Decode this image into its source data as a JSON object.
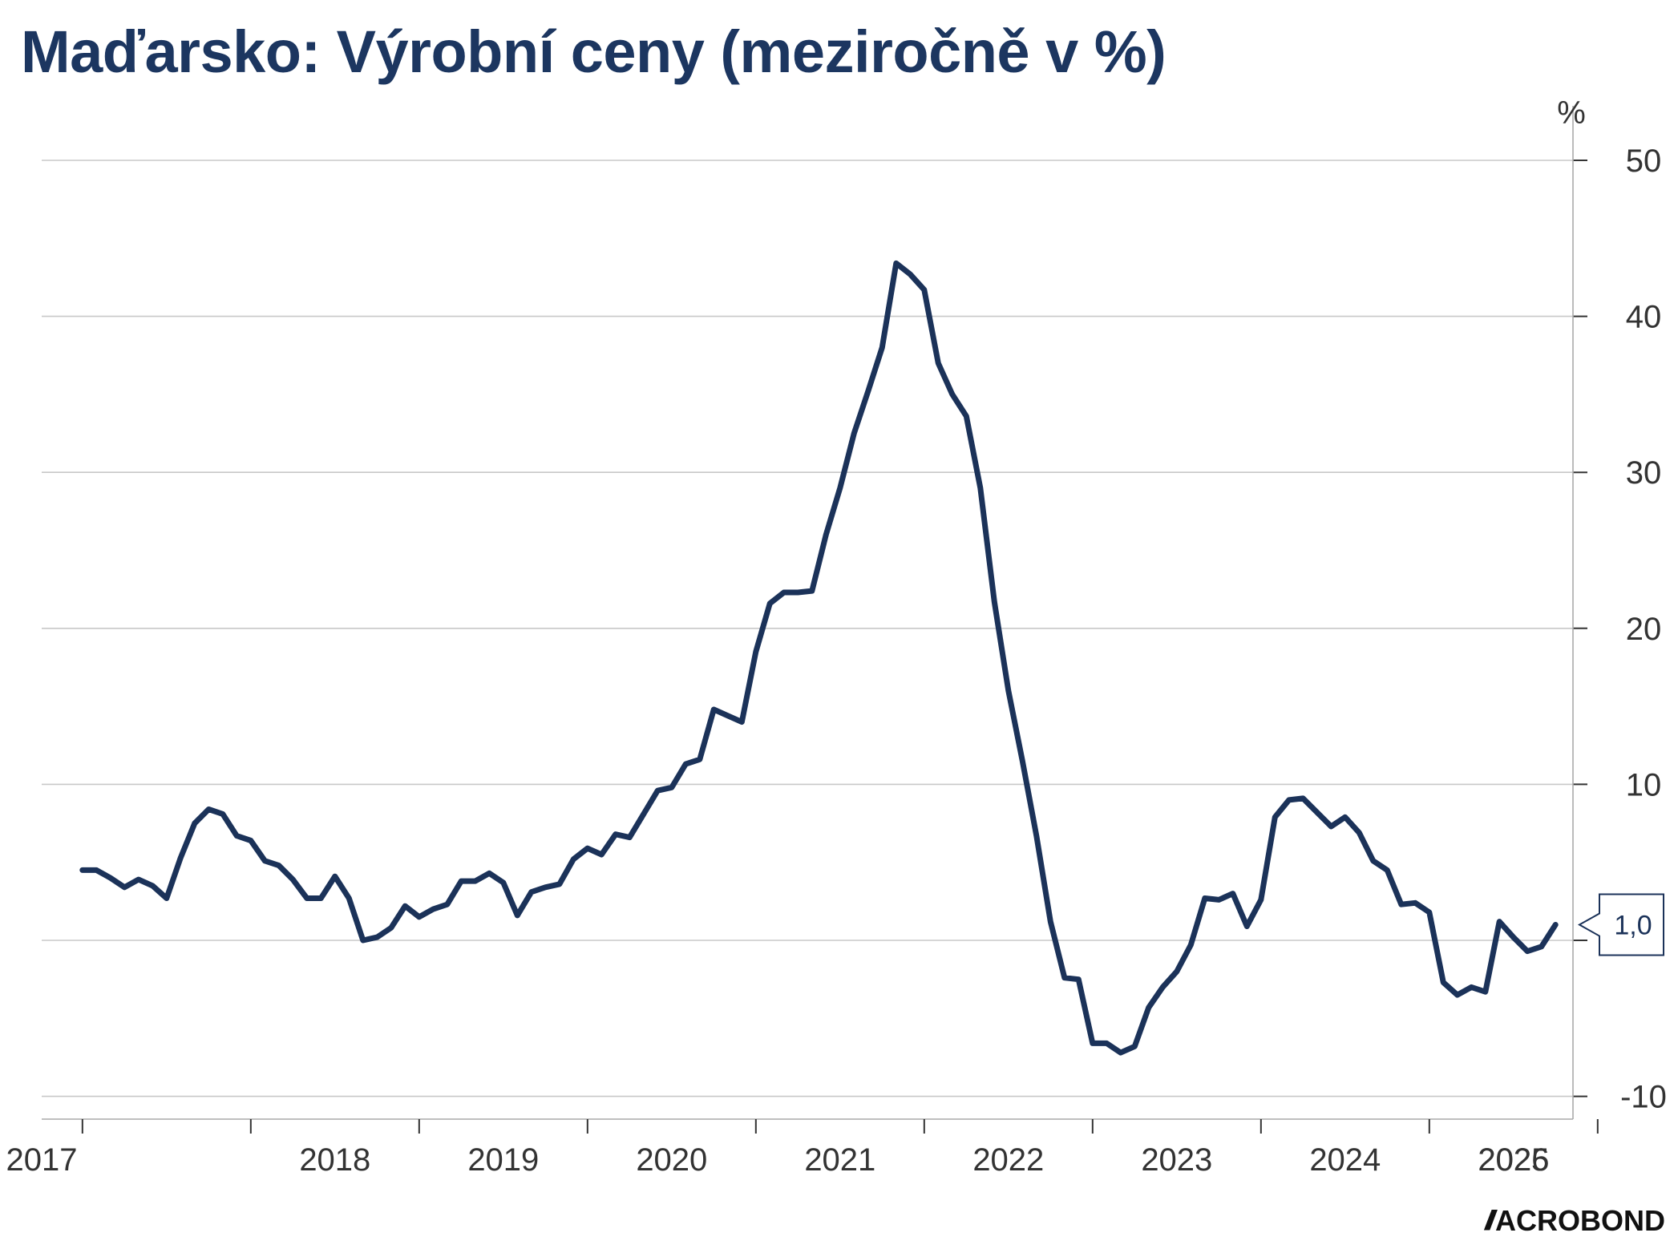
{
  "chart_data": {
    "type": "line",
    "title": "Maďarsko: Výrobní ceny (meziročně v %)",
    "y_unit": "%",
    "ylim": [
      -10,
      50
    ],
    "yticks": [
      -10,
      10,
      20,
      30,
      40,
      50
    ],
    "grid": true,
    "x_start": 2017.0,
    "x_step": 0.08333,
    "xticks": [
      "2017",
      "2018",
      "2019",
      "2020",
      "2021",
      "2022",
      "2023",
      "2024",
      "2025",
      "2026"
    ],
    "series": [
      {
        "values": [
          4.5,
          4.5,
          4.0,
          3.4,
          3.9,
          3.5,
          2.7,
          5.3,
          7.5,
          8.4,
          8.1,
          6.7,
          6.4,
          5.1,
          4.8,
          3.9,
          2.7,
          2.7,
          4.1,
          2.7,
          0.0,
          0.2,
          0.8,
          2.2,
          1.5,
          2.0,
          2.3,
          3.8,
          3.8,
          4.3,
          3.7,
          1.6,
          3.1,
          3.4,
          3.6,
          5.2,
          5.9,
          5.5,
          6.8,
          6.6,
          8.1,
          9.6,
          9.8,
          11.3,
          11.6,
          14.8,
          14.4,
          14.0,
          18.5,
          21.6,
          22.3,
          22.3,
          22.4,
          26.0,
          29.0,
          32.5,
          35.2,
          38.0,
          43.4,
          42.7,
          41.7,
          37.0,
          35.0,
          33.6,
          29.0,
          21.7,
          16.0,
          11.5,
          6.7,
          1.2,
          -2.4,
          -2.5,
          -6.6,
          -6.6,
          -7.2,
          -6.8,
          -4.3,
          -3.0,
          -2.0,
          -0.3,
          2.7,
          2.6,
          3.0,
          0.9,
          2.6,
          7.9,
          9.0,
          9.1,
          8.2,
          7.3,
          7.9,
          6.9,
          5.1,
          4.5,
          2.3,
          2.4,
          1.8,
          -2.7,
          -3.5,
          -3.0,
          -3.3,
          1.2,
          0.2,
          -0.7,
          -0.4,
          1.0
        ]
      }
    ],
    "last_value_label": "1,0"
  },
  "branding": {
    "logo_mark": "//",
    "logo_word": "ACROBOND"
  }
}
